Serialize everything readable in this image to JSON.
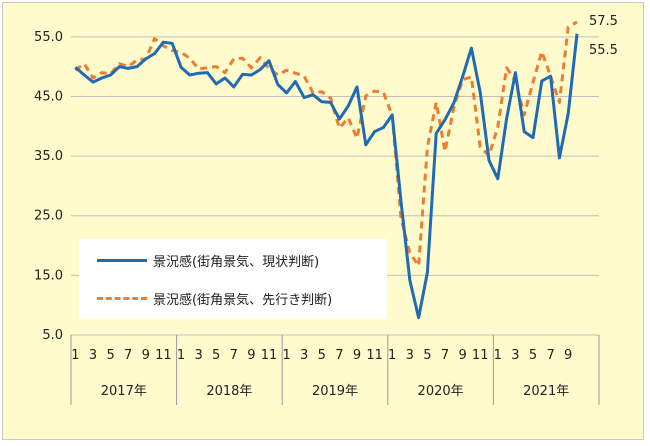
{
  "chart_data": {
    "type": "line",
    "title": "",
    "xlabel": "",
    "ylabel": "",
    "ylim": [
      5,
      60
    ],
    "yticks": [
      "55.0",
      "45.0",
      "35.0",
      "25.0",
      "15.0",
      "5.0"
    ],
    "ytick_values": [
      55,
      45,
      35,
      25,
      15,
      5
    ],
    "month_ticks": [
      "1",
      "3",
      "5",
      "7",
      "9",
      "11",
      "1",
      "3",
      "5",
      "7",
      "9",
      "11",
      "1",
      "3",
      "5",
      "7",
      "9",
      "11",
      "1",
      "3",
      "5",
      "7",
      "9",
      "11",
      "1",
      "3",
      "5",
      "7",
      "9"
    ],
    "years": [
      "2017年",
      "2018年",
      "2019年",
      "2020年",
      "2021年"
    ],
    "x_start": "2017-01",
    "grid": "horizontal",
    "legend_position": "lower-left",
    "colors": {
      "current": "#1f6bb5",
      "outlook": "#ed7d31",
      "grid": "#bfbfbf",
      "background": "#fffbcc"
    },
    "end_labels": {
      "current": "55.5",
      "outlook": "57.5"
    },
    "series": [
      {
        "name": "景況感(街角景気、現状判断)",
        "key": "current",
        "values": [
          49.9,
          48.6,
          47.4,
          48.1,
          48.6,
          50.0,
          49.7,
          50.0,
          51.3,
          52.2,
          54.1,
          53.9,
          49.9,
          48.6,
          48.9,
          49.0,
          47.1,
          48.1,
          46.6,
          48.7,
          48.6,
          49.5,
          51.0,
          47.0,
          45.6,
          47.5,
          44.8,
          45.3,
          44.1,
          44.0,
          41.2,
          43.4,
          46.6,
          36.9,
          39.1,
          39.8,
          41.9,
          27.4,
          14.2,
          7.9,
          15.5,
          38.8,
          41.1,
          43.9,
          48.3,
          53.1,
          45.7,
          34.3,
          31.2,
          41.3,
          49.0,
          39.1,
          38.1,
          47.6,
          48.4,
          34.7,
          42.1,
          55.5
        ]
      },
      {
        "name": "景況感(街角景気、先行き判断)",
        "key": "outlook",
        "values": [
          49.4,
          50.5,
          48.1,
          49.0,
          48.8,
          50.5,
          50.0,
          51.1,
          51.3,
          54.7,
          53.5,
          52.7,
          52.4,
          51.4,
          49.6,
          49.8,
          50.0,
          49.0,
          51.3,
          51.4,
          49.8,
          51.5,
          49.7,
          48.6,
          49.4,
          48.9,
          48.4,
          45.6,
          45.8,
          44.7,
          39.7,
          41.4,
          38.0,
          45.1,
          45.9,
          45.7,
          41.8,
          24.6,
          18.8,
          16.6,
          36.5,
          44.0,
          35.8,
          43.1,
          47.8,
          48.3,
          36.5,
          35.1,
          39.9,
          49.8,
          47.6,
          41.9,
          47.4,
          52.5,
          48.4,
          44.0,
          56.6,
          57.5
        ]
      }
    ]
  }
}
